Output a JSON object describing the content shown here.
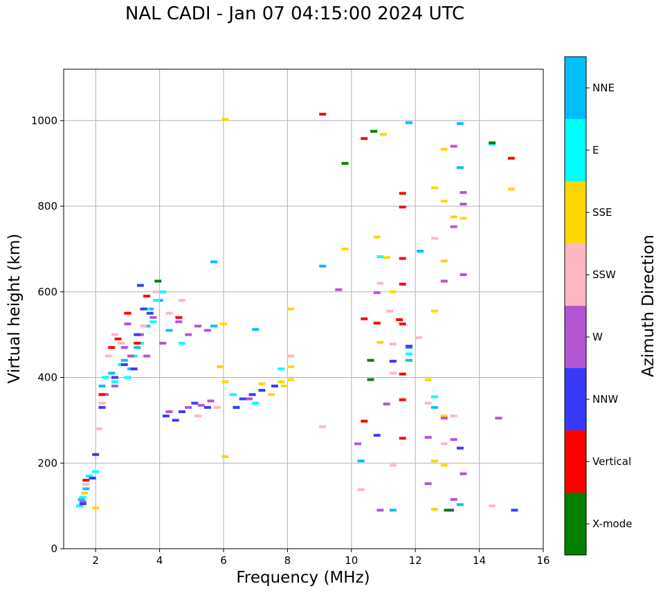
{
  "chart_data": {
    "type": "scatter",
    "title": "NAL CADI - Jan 07 04:15:00 2024 UTC",
    "xlabel": "Frequency (MHz)",
    "ylabel": "Virtual height (km)",
    "xlim": [
      1,
      16
    ],
    "ylim": [
      0,
      1120
    ],
    "xticks": [
      2,
      4,
      6,
      8,
      10,
      12,
      14,
      16
    ],
    "yticks": [
      0,
      200,
      400,
      600,
      800,
      1000
    ],
    "grid": true,
    "colorbar": {
      "label": "Azimuth Direction",
      "categories": [
        {
          "name": "NNE",
          "color": "#00bfff"
        },
        {
          "name": "E",
          "color": "#00ffff"
        },
        {
          "name": "SSE",
          "color": "#ffd700"
        },
        {
          "name": "SSW",
          "color": "#ffb6c1"
        },
        {
          "name": "W",
          "color": "#b455d6"
        },
        {
          "name": "NNW",
          "color": "#3a3aff"
        },
        {
          "name": "Vertical",
          "color": "#ff0000"
        },
        {
          "name": "X-mode",
          "color": "#008000"
        }
      ]
    },
    "series": [
      {
        "name": "NNE",
        "points": [
          [
            1.55,
            115
          ],
          [
            1.7,
            140
          ],
          [
            1.9,
            165
          ],
          [
            2.2,
            380
          ],
          [
            2.5,
            410
          ],
          [
            2.9,
            440
          ],
          [
            3.1,
            420
          ],
          [
            3.3,
            470
          ],
          [
            3.6,
            520
          ],
          [
            3.7,
            560
          ],
          [
            4.0,
            580
          ],
          [
            4.3,
            510
          ],
          [
            5.7,
            520
          ],
          [
            7.0,
            512
          ],
          [
            9.1,
            660
          ],
          [
            10.3,
            205
          ],
          [
            11.3,
            90
          ],
          [
            11.8,
            470
          ],
          [
            11.8,
            440
          ],
          [
            12.15,
            695
          ],
          [
            12.6,
            330
          ],
          [
            13.4,
            890
          ],
          [
            13.4,
            993
          ],
          [
            13.4,
            103
          ],
          [
            11.8,
            995
          ],
          [
            5.7,
            670
          ]
        ]
      },
      {
        "name": "E",
        "points": [
          [
            1.5,
            100
          ],
          [
            1.6,
            120
          ],
          [
            1.8,
            170
          ],
          [
            2.0,
            180
          ],
          [
            2.3,
            400
          ],
          [
            2.6,
            390
          ],
          [
            2.8,
            430
          ],
          [
            3.0,
            400
          ],
          [
            3.2,
            450
          ],
          [
            3.4,
            480
          ],
          [
            3.6,
            560
          ],
          [
            3.9,
            580
          ],
          [
            4.1,
            600
          ],
          [
            6.3,
            360
          ],
          [
            7.0,
            340
          ],
          [
            7.8,
            420
          ],
          [
            10.9,
            682
          ],
          [
            11.8,
            455
          ],
          [
            12.6,
            355
          ],
          [
            14.4,
            945
          ],
          [
            4.7,
            480
          ],
          [
            3.8,
            530
          ]
        ]
      },
      {
        "name": "SSE",
        "points": [
          [
            1.65,
            130
          ],
          [
            2.0,
            95
          ],
          [
            6.05,
            390
          ],
          [
            6.05,
            215
          ],
          [
            6.05,
            1003
          ],
          [
            6.0,
            525
          ],
          [
            7.5,
            360
          ],
          [
            7.8,
            390
          ],
          [
            7.9,
            380
          ],
          [
            8.1,
            395
          ],
          [
            8.1,
            425
          ],
          [
            8.1,
            560
          ],
          [
            9.8,
            700
          ],
          [
            10.8,
            728
          ],
          [
            10.9,
            482
          ],
          [
            11.0,
            968
          ],
          [
            11.1,
            680
          ],
          [
            11.3,
            600
          ],
          [
            12.4,
            395
          ],
          [
            12.6,
            843
          ],
          [
            12.6,
            555
          ],
          [
            12.6,
            205
          ],
          [
            12.6,
            92
          ],
          [
            12.9,
            933
          ],
          [
            12.9,
            812
          ],
          [
            12.9,
            672
          ],
          [
            12.9,
            310
          ],
          [
            12.9,
            195
          ],
          [
            13.2,
            775
          ],
          [
            13.5,
            772
          ],
          [
            15.0,
            840
          ],
          [
            5.9,
            425
          ],
          [
            7.2,
            385
          ]
        ]
      },
      {
        "name": "SSW",
        "points": [
          [
            1.7,
            150
          ],
          [
            2.1,
            280
          ],
          [
            2.2,
            340
          ],
          [
            2.4,
            450
          ],
          [
            2.6,
            500
          ],
          [
            2.8,
            480
          ],
          [
            3.5,
            520
          ],
          [
            3.9,
            600
          ],
          [
            4.3,
            550
          ],
          [
            4.7,
            580
          ],
          [
            5.2,
            310
          ],
          [
            5.8,
            330
          ],
          [
            9.1,
            285
          ],
          [
            10.3,
            138
          ],
          [
            10.9,
            620
          ],
          [
            11.2,
            555
          ],
          [
            11.3,
            478
          ],
          [
            11.3,
            410
          ],
          [
            11.3,
            195
          ],
          [
            12.1,
            493
          ],
          [
            12.4,
            340
          ],
          [
            12.6,
            725
          ],
          [
            12.9,
            245
          ],
          [
            13.2,
            310
          ],
          [
            14.4,
            100
          ],
          [
            8.1,
            450
          ]
        ]
      },
      {
        "name": "W",
        "points": [
          [
            1.6,
            110
          ],
          [
            2.3,
            360
          ],
          [
            2.6,
            380
          ],
          [
            2.9,
            470
          ],
          [
            3.1,
            450
          ],
          [
            3.4,
            500
          ],
          [
            3.6,
            450
          ],
          [
            3.8,
            540
          ],
          [
            4.1,
            480
          ],
          [
            4.3,
            320
          ],
          [
            4.6,
            530
          ],
          [
            4.9,
            500
          ],
          [
            5.2,
            520
          ],
          [
            5.5,
            510
          ],
          [
            4.9,
            330
          ],
          [
            5.3,
            335
          ],
          [
            5.6,
            345
          ],
          [
            6.4,
            330
          ],
          [
            9.6,
            605
          ],
          [
            10.2,
            245
          ],
          [
            10.8,
            598
          ],
          [
            10.9,
            90
          ],
          [
            11.1,
            338
          ],
          [
            11.3,
            438
          ],
          [
            12.4,
            260
          ],
          [
            12.4,
            152
          ],
          [
            12.9,
            625
          ],
          [
            12.9,
            305
          ],
          [
            13.2,
            940
          ],
          [
            13.2,
            752
          ],
          [
            13.2,
            255
          ],
          [
            13.2,
            115
          ],
          [
            13.5,
            832
          ],
          [
            13.5,
            805
          ],
          [
            13.5,
            640
          ],
          [
            13.5,
            175
          ],
          [
            14.6,
            305
          ],
          [
            6.8,
            350
          ],
          [
            3.0,
            525
          ]
        ]
      },
      {
        "name": "NNW",
        "points": [
          [
            1.6,
            105
          ],
          [
            1.9,
            165
          ],
          [
            2.0,
            220
          ],
          [
            2.2,
            330
          ],
          [
            2.6,
            400
          ],
          [
            2.9,
            430
          ],
          [
            3.2,
            420
          ],
          [
            3.3,
            500
          ],
          [
            3.5,
            560
          ],
          [
            3.7,
            550
          ],
          [
            4.2,
            310
          ],
          [
            4.5,
            300
          ],
          [
            4.7,
            320
          ],
          [
            5.1,
            340
          ],
          [
            5.5,
            330
          ],
          [
            6.4,
            330
          ],
          [
            6.6,
            350
          ],
          [
            6.9,
            360
          ],
          [
            7.2,
            370
          ],
          [
            7.6,
            380
          ],
          [
            10.8,
            265
          ],
          [
            11.3,
            438
          ],
          [
            11.8,
            473
          ],
          [
            13.4,
            235
          ],
          [
            13.1,
            90
          ],
          [
            15.1,
            90
          ],
          [
            3.4,
            615
          ]
        ]
      },
      {
        "name": "Vertical",
        "points": [
          [
            1.7,
            160
          ],
          [
            2.2,
            360
          ],
          [
            2.5,
            470
          ],
          [
            2.7,
            490
          ],
          [
            3.0,
            550
          ],
          [
            3.3,
            480
          ],
          [
            3.6,
            590
          ],
          [
            9.1,
            1015
          ],
          [
            10.4,
            958
          ],
          [
            10.4,
            537
          ],
          [
            10.4,
            298
          ],
          [
            10.8,
            527
          ],
          [
            11.5,
            535
          ],
          [
            11.6,
            830
          ],
          [
            11.6,
            798
          ],
          [
            11.6,
            678
          ],
          [
            11.6,
            618
          ],
          [
            11.6,
            525
          ],
          [
            11.6,
            408
          ],
          [
            11.6,
            348
          ],
          [
            11.6,
            258
          ],
          [
            15.0,
            912
          ],
          [
            4.6,
            540
          ]
        ]
      },
      {
        "name": "X-mode",
        "points": [
          [
            10.6,
            440
          ],
          [
            10.6,
            395
          ],
          [
            10.7,
            975
          ],
          [
            9.8,
            900
          ],
          [
            13.0,
            90
          ],
          [
            14.4,
            948
          ],
          [
            3.95,
            625
          ]
        ]
      }
    ]
  }
}
